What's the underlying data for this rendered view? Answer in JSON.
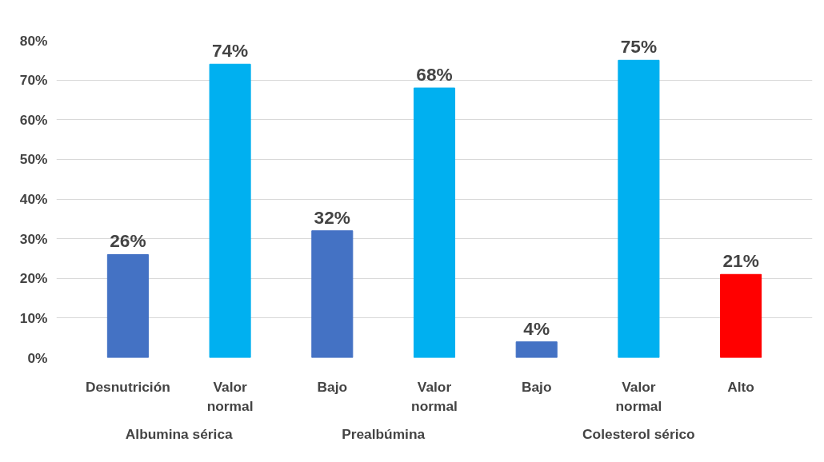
{
  "chart_data": {
    "type": "bar",
    "categories": [
      "Desnutrición",
      "Valor normal",
      "Bajo",
      "Valor normal",
      "Bajo",
      "Valor normal",
      "Alto"
    ],
    "values": [
      26,
      74,
      32,
      68,
      4,
      75,
      21
    ],
    "colors": [
      "#4472c4",
      "#00b0f0",
      "#4472c4",
      "#00b0f0",
      "#4472c4",
      "#00b0f0",
      "#ff0000"
    ],
    "value_labels": [
      "26%",
      "74%",
      "32%",
      "68%",
      "4%",
      "75%",
      "21%"
    ],
    "ylim": [
      0,
      80
    ],
    "yticks": [
      {
        "value": 0,
        "label": "0%"
      },
      {
        "value": 10,
        "label": "10%"
      },
      {
        "value": 20,
        "label": "20%"
      },
      {
        "value": 30,
        "label": "30%"
      },
      {
        "value": 40,
        "label": "40%"
      },
      {
        "value": 50,
        "label": "50%"
      },
      {
        "value": 60,
        "label": "60%"
      },
      {
        "value": 70,
        "label": "70%"
      },
      {
        "value": 80,
        "label": "80%"
      }
    ],
    "grid": "y",
    "legend": false,
    "annotations": [
      "Albumina sérica",
      "Prealbúmina",
      "Colesterol sérico"
    ]
  }
}
